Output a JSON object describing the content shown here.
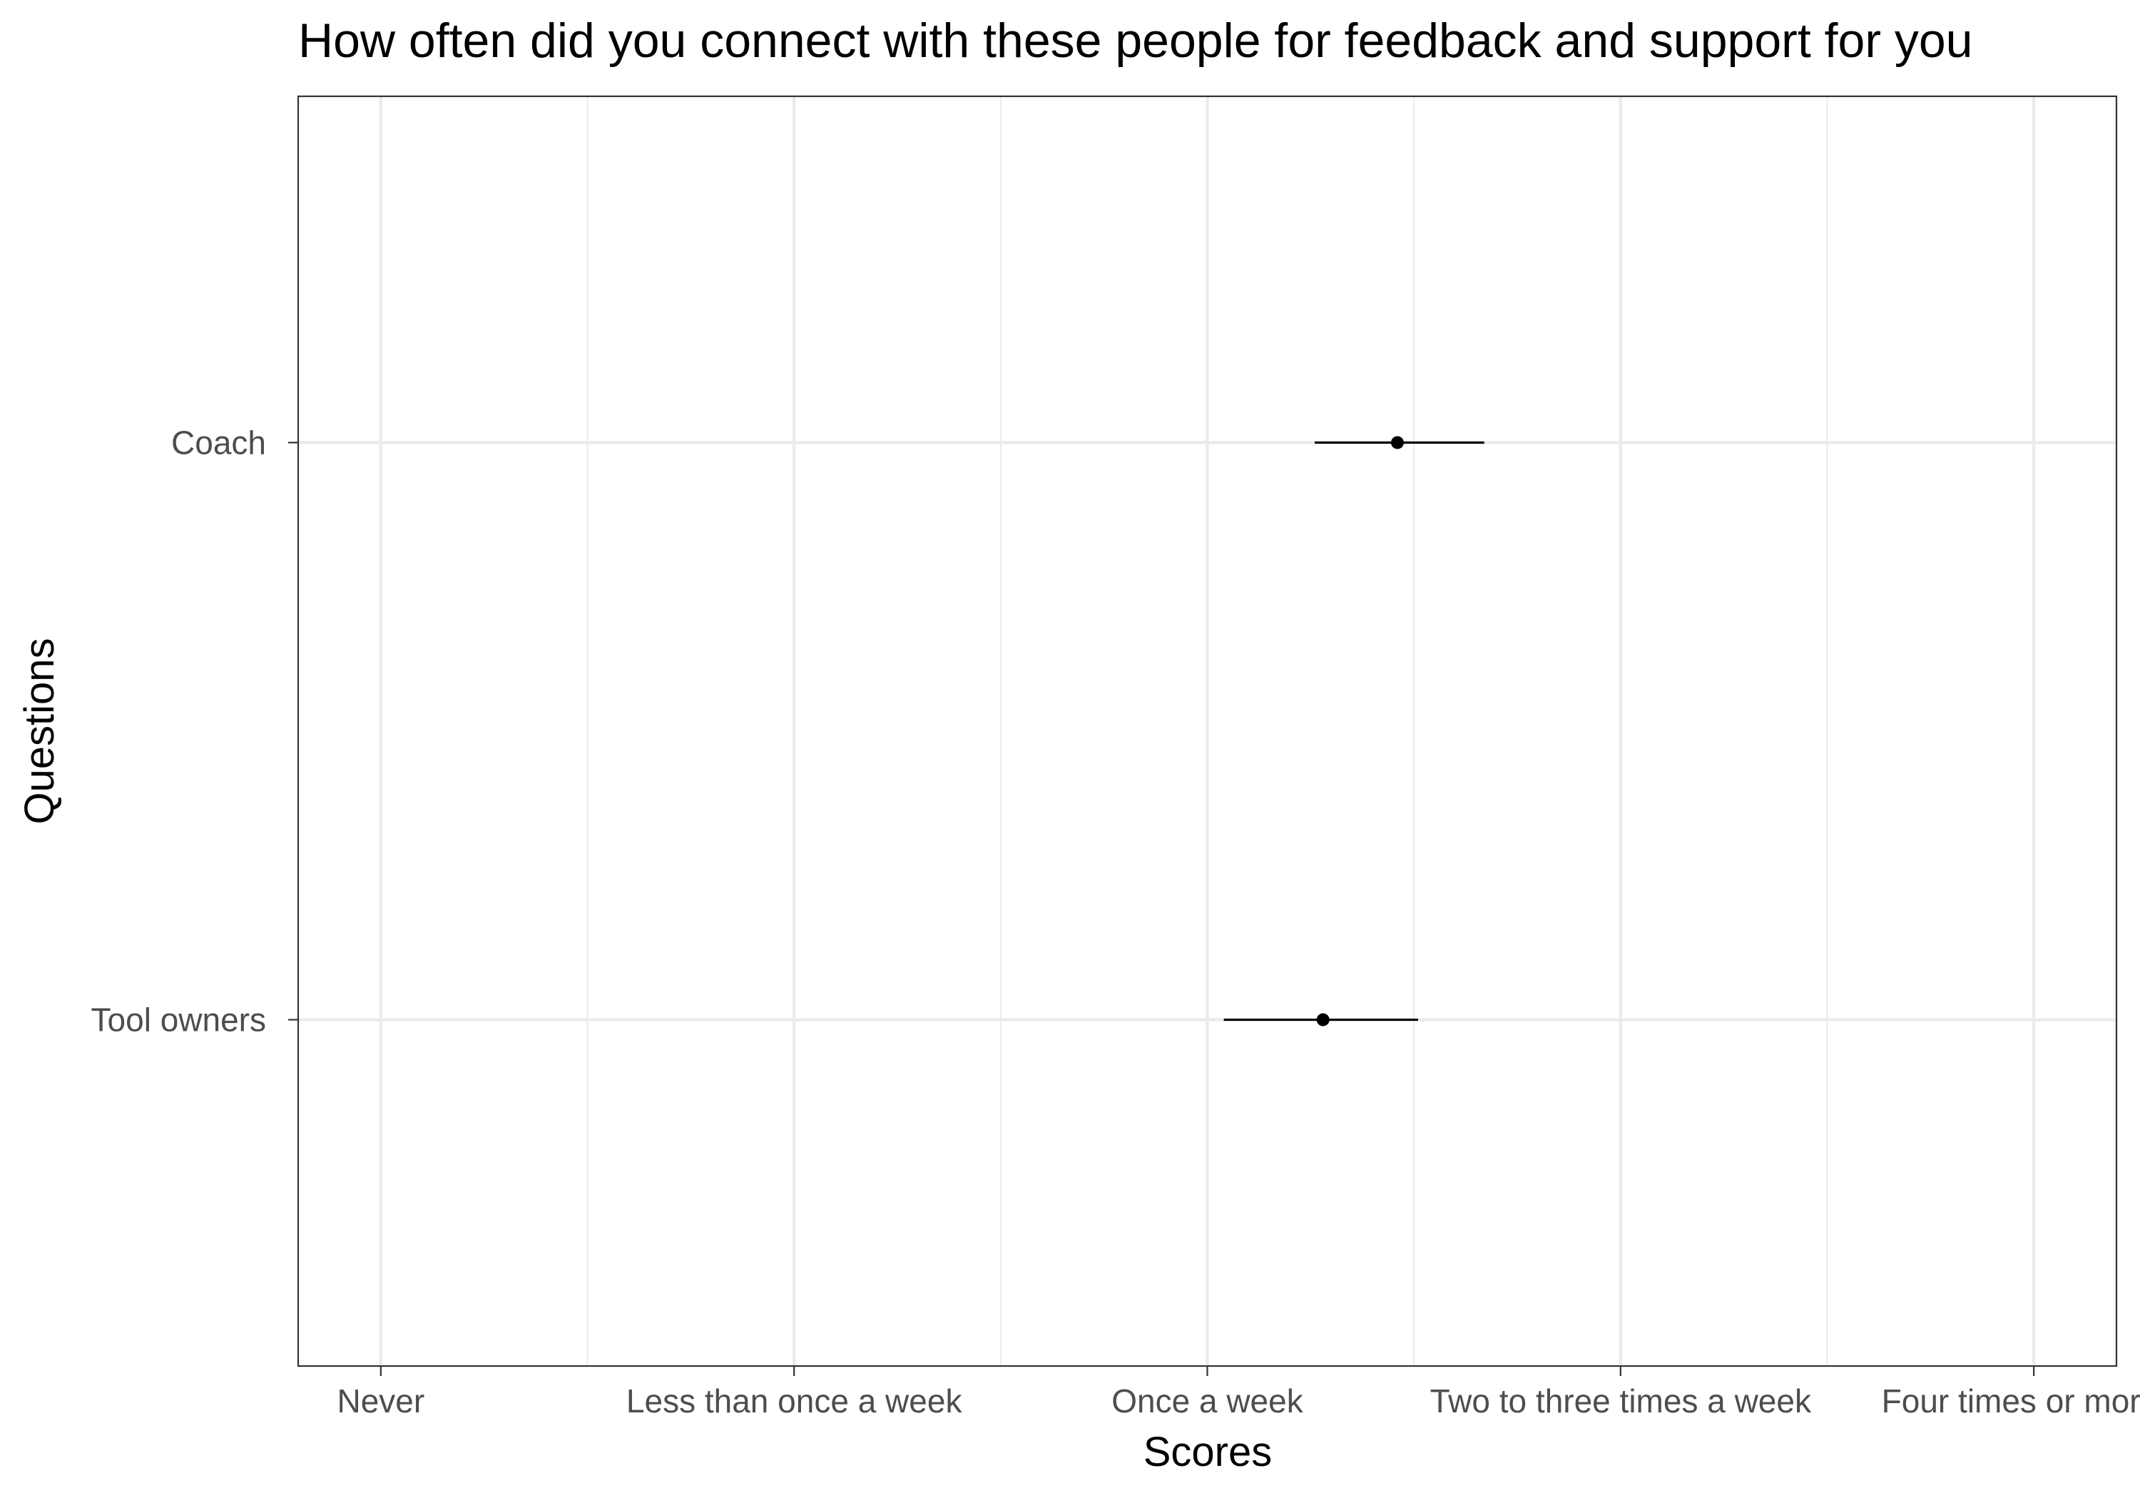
{
  "chart_data": {
    "type": "dot-interval",
    "title": "How often did you connect with these people for feedback and support for you",
    "xlabel": "Scores",
    "ylabel": "Questions",
    "x_ticks": [
      "Never",
      "Less than once a week",
      "Once a week",
      "Two to three times a week",
      "Four times or more a"
    ],
    "x_range": [
      0.8,
      5.2
    ],
    "categories": [
      "Coach",
      "Tool owners"
    ],
    "series": [
      {
        "points": [
          {
            "category": "Coach",
            "estimate": 3.46,
            "low": 3.26,
            "high": 3.67
          },
          {
            "category": "Tool owners",
            "estimate": 3.28,
            "low": 3.04,
            "high": 3.51
          }
        ]
      }
    ],
    "grid": true,
    "legend": "none",
    "colors": {
      "point": "#000000",
      "interval": "#000000",
      "grid": "#ebebeb",
      "panel_border": "#333333",
      "tick_text": "#4d4d4d"
    }
  }
}
